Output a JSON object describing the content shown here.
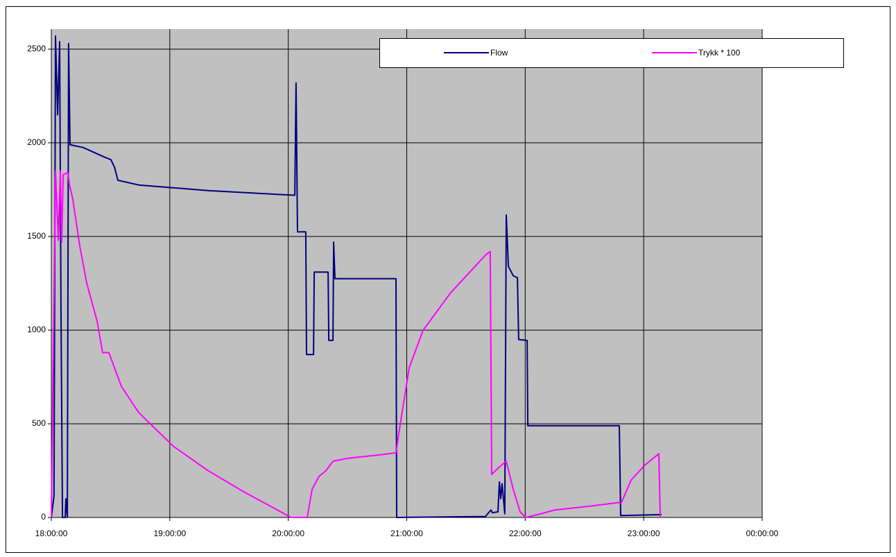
{
  "chart_data": {
    "type": "line",
    "xlim": [
      18,
      24
    ],
    "xticks": [
      {
        "value": 18,
        "label": "18:00:00"
      },
      {
        "value": 19,
        "label": "19:00:00"
      },
      {
        "value": 20,
        "label": "20:00:00"
      },
      {
        "value": 21,
        "label": "21:00:00"
      },
      {
        "value": 22,
        "label": "22:00:00"
      },
      {
        "value": 23,
        "label": "23:00:00"
      },
      {
        "value": 24,
        "label": "00:00:00"
      }
    ],
    "ylim": [
      0,
      2607
    ],
    "yticks": [
      0,
      500,
      1000,
      1500,
      2000,
      2500
    ],
    "grid": true,
    "legend": "top-right",
    "series": [
      {
        "name": "Flow",
        "color": "#000080",
        "x": [
          18.0,
          18.023,
          18.035,
          18.053,
          18.07,
          18.082,
          18.094,
          18.117,
          18.123,
          18.135,
          18.146,
          18.158,
          18.269,
          18.445,
          18.503,
          18.533,
          18.562,
          18.738,
          19.03,
          19.323,
          19.616,
          19.908,
          20.055,
          20.066,
          20.078,
          20.148,
          20.154,
          20.213,
          20.219,
          20.336,
          20.342,
          20.377,
          20.383,
          20.394,
          20.909,
          20.915,
          21.664,
          21.711,
          21.723,
          21.77,
          21.782,
          21.793,
          21.805,
          21.828,
          21.84,
          21.858,
          21.899,
          21.934,
          21.945,
          22.016,
          22.022,
          22.794,
          22.806,
          23.151
        ],
        "values": [
          0,
          115,
          2570,
          2150,
          2540,
          1070,
          0,
          0,
          100,
          0,
          2530,
          1990,
          1975,
          1925,
          1910,
          1870,
          1800,
          1775,
          1760,
          1745,
          1735,
          1725,
          1720,
          2320,
          1525,
          1525,
          870,
          870,
          1310,
          1310,
          945,
          945,
          1470,
          1275,
          1275,
          0,
          5,
          40,
          25,
          30,
          190,
          100,
          180,
          20,
          1615,
          1340,
          1290,
          1280,
          950,
          945,
          490,
          490,
          10,
          15
        ]
      },
      {
        "name": "Trykk * 100",
        "color": "#ff00ff",
        "x": [
          18.0,
          18.035,
          18.059,
          18.076,
          18.088,
          18.1,
          18.14,
          18.152,
          18.181,
          18.24,
          18.299,
          18.386,
          18.433,
          18.486,
          18.591,
          18.738,
          19.03,
          19.323,
          19.616,
          19.908,
          20.025,
          20.16,
          20.201,
          20.26,
          20.318,
          20.377,
          20.494,
          20.786,
          20.909,
          20.933,
          21.021,
          21.138,
          21.372,
          21.664,
          21.705,
          21.717,
          21.782,
          21.84,
          21.899,
          21.957,
          22.004,
          22.133,
          22.25,
          22.543,
          22.794,
          22.812,
          22.894,
          23.011,
          23.128,
          23.14
        ],
        "values": [
          0,
          1850,
          1480,
          1850,
          1470,
          1830,
          1840,
          1780,
          1700,
          1450,
          1250,
          1050,
          880,
          880,
          700,
          560,
          380,
          250,
          140,
          40,
          0,
          0,
          150,
          220,
          250,
          300,
          315,
          335,
          345,
          450,
          800,
          1000,
          1200,
          1400,
          1420,
          230,
          270,
          300,
          150,
          30,
          0,
          20,
          40,
          60,
          80,
          80,
          200,
          280,
          340,
          0
        ]
      }
    ]
  }
}
